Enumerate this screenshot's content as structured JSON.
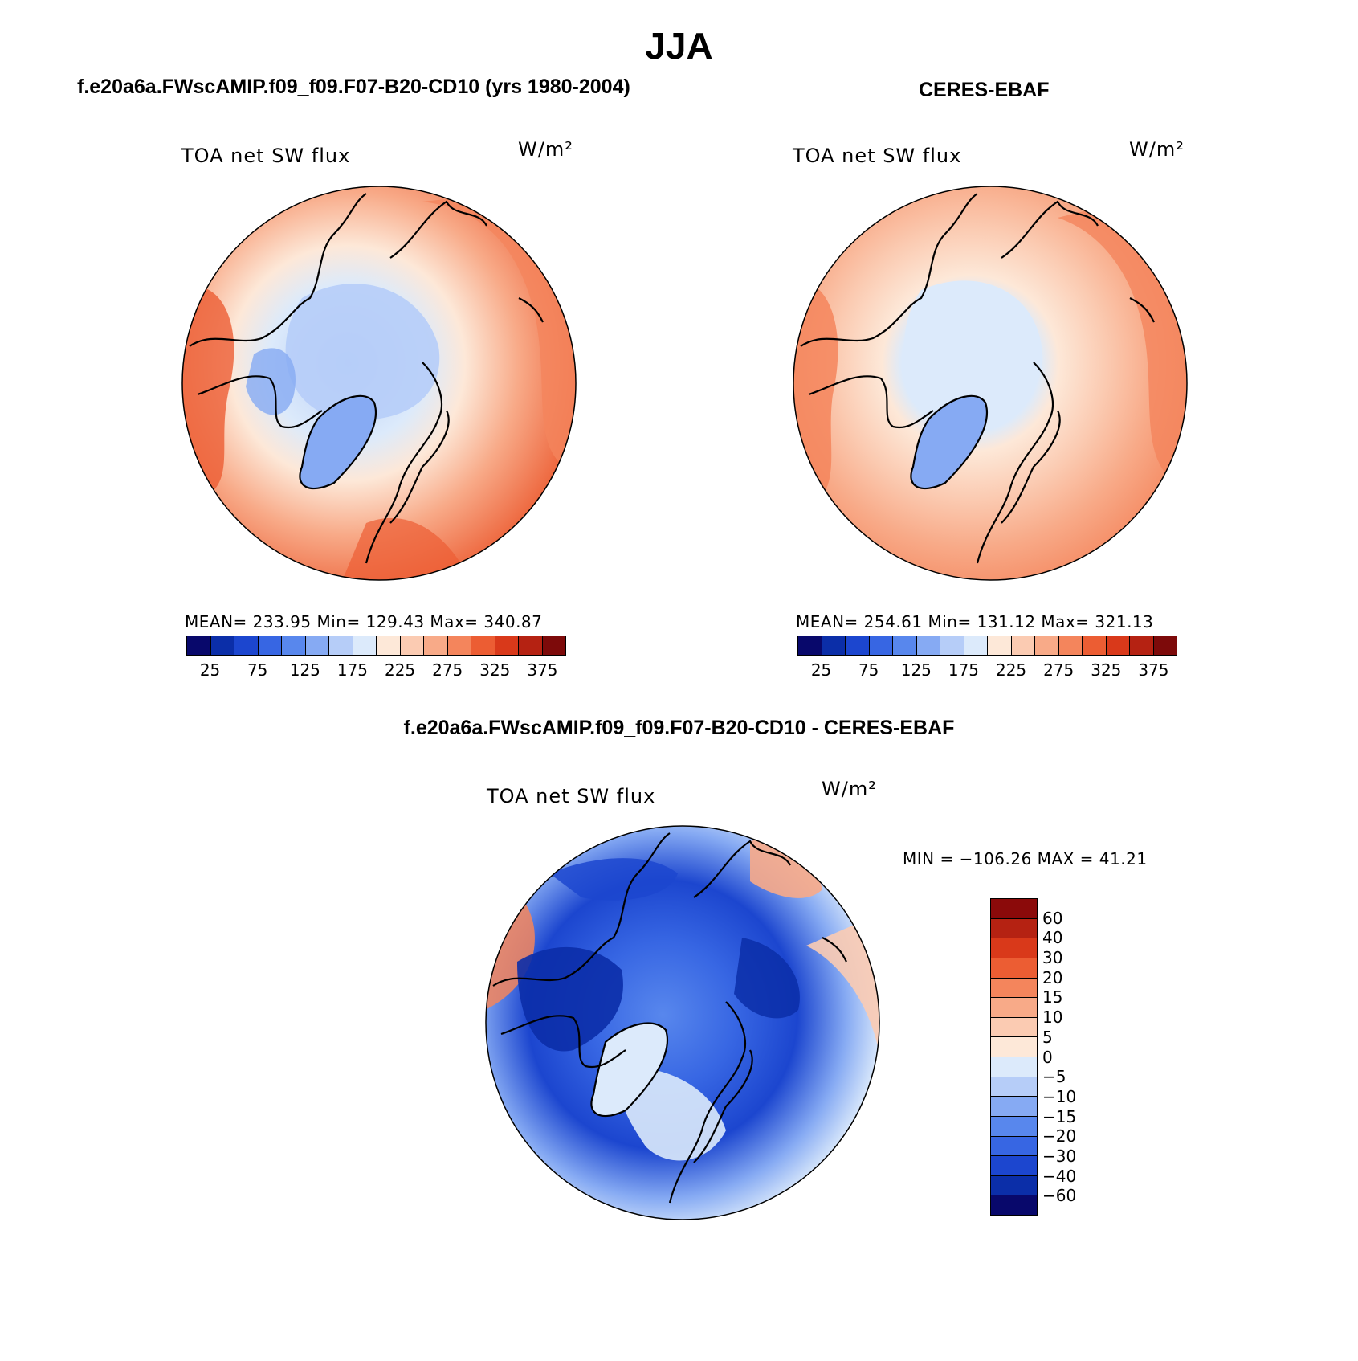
{
  "figure": {
    "title": "JJA"
  },
  "panels": [
    {
      "id": "model",
      "title": "f.e20a6a.FWscAMIP.f09_f09.F07-B20-CD10 (yrs 1980-2004)",
      "variable": "TOA net SW flux",
      "units": "W/m²",
      "stats": "MEAN= 233.95   Min= 129.43   Max= 340.87",
      "colorbar": {
        "colors": [
          "#08086b",
          "#0b2ea8",
          "#1c46cf",
          "#3766e3",
          "#5887ed",
          "#86aaf3",
          "#b6cdf8",
          "#dceafb",
          "#fde8d8",
          "#fbcbb2",
          "#f8aa88",
          "#f4855c",
          "#ec5d33",
          "#d9391a",
          "#b52212",
          "#7d0a0a"
        ],
        "ticks": [
          "25",
          "75",
          "125",
          "175",
          "225",
          "275",
          "325",
          "375"
        ]
      }
    },
    {
      "id": "obs",
      "title": "CERES-EBAF",
      "variable": "TOA net SW flux",
      "units": "W/m²",
      "stats": "MEAN= 254.61   Min= 131.12   Max= 321.13",
      "colorbar": {
        "colors": [
          "#08086b",
          "#0b2ea8",
          "#1c46cf",
          "#3766e3",
          "#5887ed",
          "#86aaf3",
          "#b6cdf8",
          "#dceafb",
          "#fde8d8",
          "#fbcbb2",
          "#f8aa88",
          "#f4855c",
          "#ec5d33",
          "#d9391a",
          "#b52212",
          "#7d0a0a"
        ],
        "ticks": [
          "25",
          "75",
          "125",
          "175",
          "225",
          "275",
          "325",
          "375"
        ]
      }
    },
    {
      "id": "diff",
      "title": "f.e20a6a.FWscAMIP.f09_f09.F07-B20-CD10 - CERES-EBAF",
      "variable": "TOA net SW flux",
      "units": "W/m²",
      "stats": "MIN = −106.26 MAX =   41.21",
      "colorbar": {
        "colors": [
          "#8b0a0a",
          "#b52212",
          "#d9391a",
          "#ec5d33",
          "#f4855c",
          "#f8aa88",
          "#fbcbb2",
          "#fde8d8",
          "#dceafb",
          "#b6cdf8",
          "#86aaf3",
          "#5887ed",
          "#3766e3",
          "#1c46cf",
          "#0b2ea8",
          "#08086b"
        ],
        "ticks": [
          "60",
          "40",
          "30",
          "20",
          "15",
          "10",
          "5",
          "0",
          "−5",
          "−10",
          "−15",
          "−20",
          "−30",
          "−40",
          "−60"
        ]
      }
    }
  ]
}
